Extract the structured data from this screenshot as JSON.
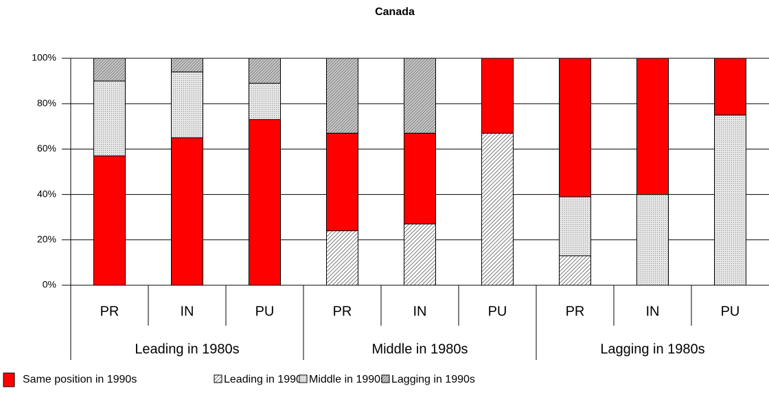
{
  "chart_data": {
    "type": "stacked-bar",
    "title": "Canada",
    "categories": [
      "PR",
      "IN",
      "PU",
      "PR",
      "IN",
      "PU",
      "PR",
      "IN",
      "PU"
    ],
    "groups": [
      "Leading in 1980s",
      "Middle in 1980s",
      "Lagging in 1980s"
    ],
    "series": [
      {
        "name": "Same position in 1990s",
        "color": "#ff0000",
        "values": [
          57,
          65,
          73,
          43,
          40,
          33,
          61,
          60,
          25
        ]
      },
      {
        "name": "Leading in 1990s",
        "color": "#bfbfbf",
        "values": [
          0,
          0,
          0,
          24,
          27,
          67,
          13,
          0,
          0
        ]
      },
      {
        "name": "Middle in 1990s",
        "color": "#d4d4d4",
        "values": [
          33,
          29,
          16,
          0,
          0,
          0,
          26,
          40,
          75
        ]
      },
      {
        "name": "Lagging in 1990s",
        "color": "#a6a6a6",
        "values": [
          10,
          6,
          11,
          33,
          33,
          0,
          0,
          0,
          0
        ]
      }
    ],
    "ylim": [
      0,
      100
    ],
    "yticks": [
      {
        "value": 0,
        "label": "0%"
      },
      {
        "value": 20,
        "label": "20%"
      },
      {
        "value": 40,
        "label": "40%"
      },
      {
        "value": 60,
        "label": "60%"
      },
      {
        "value": 80,
        "label": "80%"
      },
      {
        "value": 100,
        "label": "100%"
      }
    ],
    "grid": true
  }
}
